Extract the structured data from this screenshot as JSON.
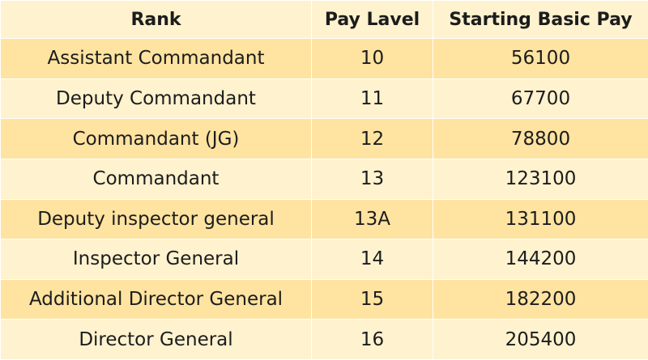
{
  "table": {
    "headers": [
      "Rank",
      "Pay Lavel",
      "Starting Basic Pay"
    ],
    "rows": [
      [
        "Assistant Commandant",
        "10",
        "56100"
      ],
      [
        "Deputy Commandant",
        "11",
        "67700"
      ],
      [
        "Commandant (JG)",
        "12",
        "78800"
      ],
      [
        "Commandant",
        "13",
        "123100"
      ],
      [
        "Deputy inspector general",
        "13A",
        "131100"
      ],
      [
        "Inspector General",
        "14",
        "144200"
      ],
      [
        "Additional Director General",
        "15",
        "182200"
      ],
      [
        "Director General",
        "16",
        "205400"
      ]
    ]
  },
  "colors": {
    "header_bg": "#fef2cf",
    "row_dark_bg": "#fee3a1",
    "row_light_bg": "#fef2cf",
    "text": "#1c1c1c"
  }
}
